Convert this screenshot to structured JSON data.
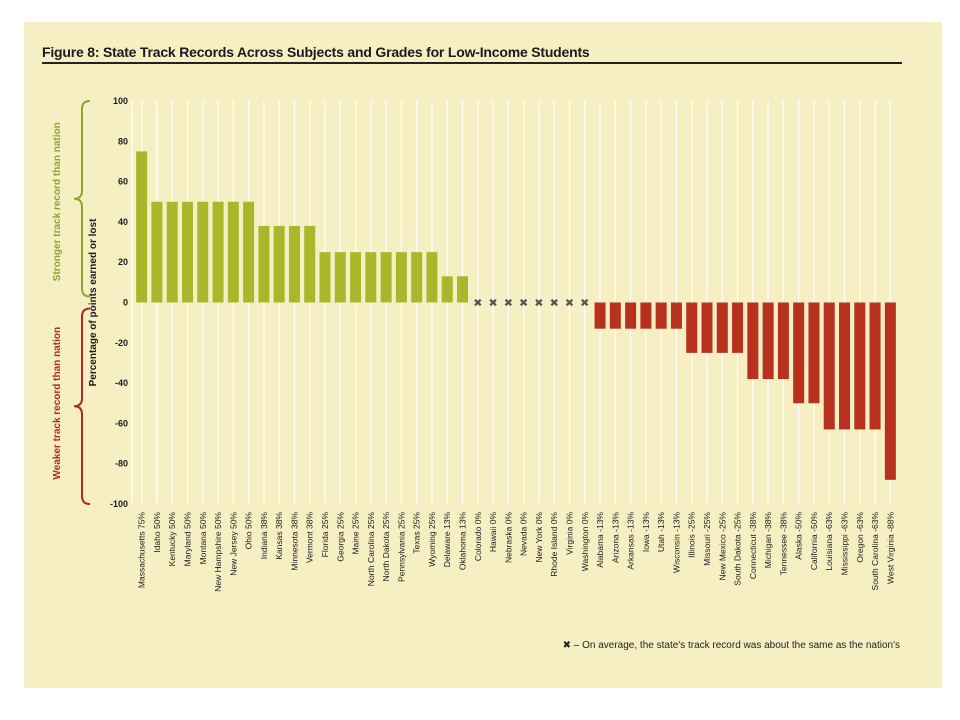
{
  "figure": {
    "title": "Figure 8: State Track Records Across Subjects and Grades for Low-Income Students",
    "footnote": "✖ – On average, the state's track record was about the same as the nation's"
  },
  "colors": {
    "panel": "#f7efc4",
    "positive": "#a8b82a",
    "negative": "#b8301e",
    "zero_marker": "#555555",
    "strong_label": "#8fa52a",
    "weak_label": "#b02a1a"
  },
  "chart_data": {
    "type": "bar",
    "ylabel": "Percentage of points earned or lost",
    "ylim": [
      -100,
      100
    ],
    "yticks": [
      100,
      80,
      60,
      40,
      20,
      0,
      -20,
      -40,
      -60,
      -80,
      -100
    ],
    "grid": "vertical",
    "zero_marker": "✖",
    "brace_labels": {
      "positive": "Stronger track record than nation",
      "negative": "Weaker track record than nation"
    },
    "categories": [
      "Massachusetts",
      "Idaho",
      "Kentucky",
      "Maryland",
      "Montana",
      "New Hampshire",
      "New Jersey",
      "Ohio",
      "Indiana",
      "Kansas",
      "Minnesota",
      "Vermont",
      "Florida",
      "Georgia",
      "Maine",
      "North Carolina",
      "North Dakota",
      "Pennsylvania",
      "Texas",
      "Wyoming",
      "Delaware",
      "Oklahoma",
      "Colorado",
      "Hawaii",
      "Nebraska",
      "Nevada",
      "New York",
      "Rhode Island",
      "Virginia",
      "Washington",
      "Alabama",
      "Arizona",
      "Arkansas",
      "Iowa",
      "Utah",
      "Wisconsin",
      "Illinois",
      "Missouri",
      "New Mexico",
      "South Dakota",
      "Connecticut",
      "Michigan",
      "Tennessee",
      "Alaska",
      "California",
      "Louisiana",
      "Mississippi",
      "Oregon",
      "South Carolina",
      "West Virginia"
    ],
    "values": [
      75,
      50,
      50,
      50,
      50,
      50,
      50,
      50,
      38,
      38,
      38,
      38,
      25,
      25,
      25,
      25,
      25,
      25,
      25,
      25,
      13,
      13,
      0,
      0,
      0,
      0,
      0,
      0,
      0,
      0,
      -13,
      -13,
      -13,
      -13,
      -13,
      -13,
      -25,
      -25,
      -25,
      -25,
      -38,
      -38,
      -38,
      -50,
      -50,
      -63,
      -63,
      -63,
      -63,
      -88
    ],
    "value_labels": [
      "75%",
      "50%",
      "50%",
      "50%",
      "50%",
      "50%",
      "50%",
      "50%",
      "38%",
      "38%",
      "38%",
      "38%",
      "25%",
      "25%",
      "25%",
      "25%",
      "25%",
      "25%",
      "25%",
      "25%",
      "13%",
      "13%",
      "0%",
      "0%",
      "0%",
      "0%",
      "0%",
      "0%",
      "0%",
      "0%",
      "-13%",
      "-13%",
      "-13%",
      "-13%",
      "-13%",
      "-13%",
      "-25%",
      "-25%",
      "-25%",
      "-25%",
      "-38%",
      "-38%",
      "-38%",
      "-50%",
      "-50%",
      "-63%",
      "-63%",
      "-63%",
      "-63%",
      "-88%"
    ]
  }
}
